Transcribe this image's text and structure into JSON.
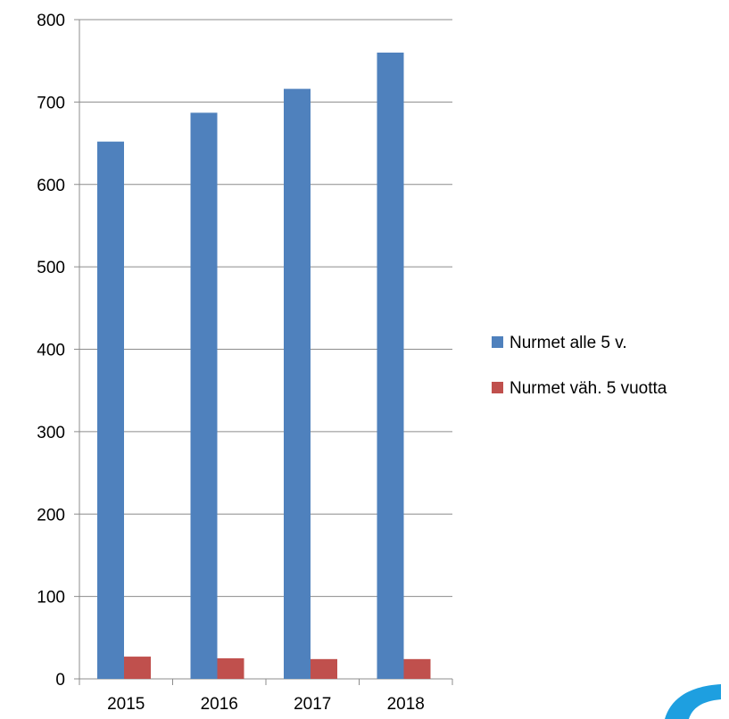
{
  "chart_data": {
    "type": "bar",
    "title": "",
    "xlabel": "",
    "ylabel": "",
    "categories": [
      "2015",
      "2016",
      "2017",
      "2018"
    ],
    "series": [
      {
        "name": "Nurmet alle 5 v.",
        "values": [
          652,
          687,
          716,
          760
        ],
        "color": "#4F81BD"
      },
      {
        "name": "Nurmet väh. 5 vuotta",
        "values": [
          27,
          25,
          24,
          24
        ],
        "color": "#C0504D"
      }
    ],
    "ylim": [
      0,
      800
    ],
    "yticks": [
      "0",
      "100",
      "200",
      "300",
      "400",
      "500",
      "600",
      "700",
      "800"
    ],
    "grid": true,
    "legend_position": "right"
  },
  "decoration": {
    "logo_icon": "partial-blue-swoosh-logo",
    "logo_color": "#1E9FE0"
  }
}
